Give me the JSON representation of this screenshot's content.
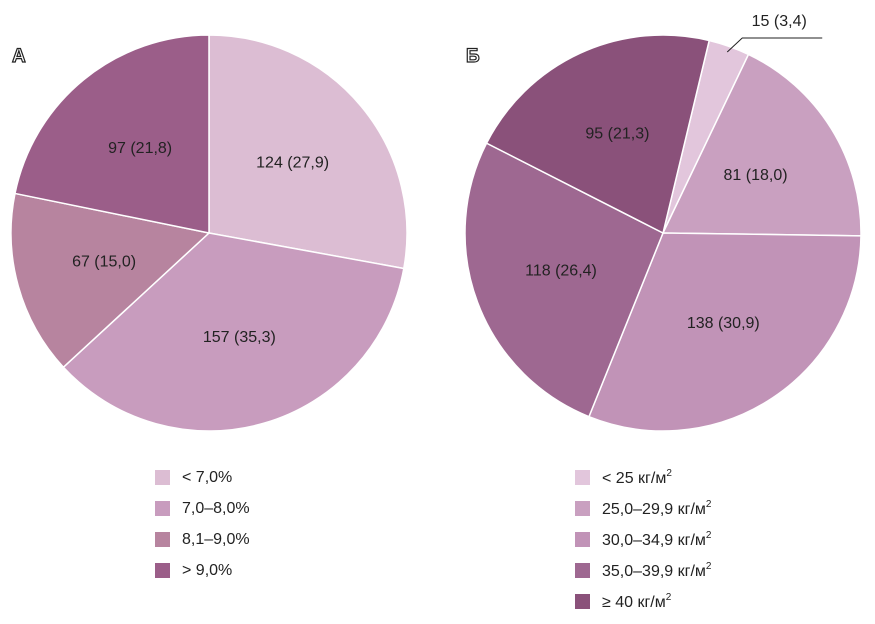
{
  "chart_data": [
    {
      "type": "pie",
      "panel": "А",
      "slices": [
        {
          "label": "< 7,0%",
          "value": 124,
          "percent": 27.9,
          "text": "124 (27,9)",
          "color": "#dcbdd3"
        },
        {
          "label": "7,0–8,0%",
          "value": 157,
          "percent": 35.3,
          "text": "157 (35,3)",
          "color": "#c89cbe"
        },
        {
          "label": "8,1–9,0%",
          "value": 67,
          "percent": 15.0,
          "text": "67 (15,0)",
          "color": "#b7849f"
        },
        {
          "label": "> 9,0%",
          "value": 97,
          "percent": 21.8,
          "text": "97 (21,8)",
          "color": "#9b5e89"
        }
      ],
      "start_angle_deg": 0,
      "legend_position": "bottom"
    },
    {
      "type": "pie",
      "panel": "Б",
      "slices": [
        {
          "label": "< 25 кг/м",
          "sup": "2",
          "value": 15,
          "percent": 3.4,
          "text": "15 (3,4)",
          "color": "#e2c6dc",
          "callout": true
        },
        {
          "label": "25,0–29,9 кг/м",
          "sup": "2",
          "value": 81,
          "percent": 18.0,
          "text": "81 (18,0)",
          "color": "#c9a0c0"
        },
        {
          "label": "30,0–34,9 кг/м",
          "sup": "2",
          "value": 138,
          "percent": 30.9,
          "text": "138 (30,9)",
          "color": "#c193b7"
        },
        {
          "label": "35,0–39,9 кг/м",
          "sup": "2",
          "value": 118,
          "percent": 26.4,
          "text": "118 (26,4)",
          "color": "#9e6891"
        },
        {
          "label": "≥ 40 кг/м",
          "sup": "2",
          "value": 95,
          "percent": 21.3,
          "text": "95 (21,3)",
          "color": "#8a517a"
        }
      ],
      "start_angle_deg": 13.5,
      "legend_position": "bottom"
    }
  ]
}
